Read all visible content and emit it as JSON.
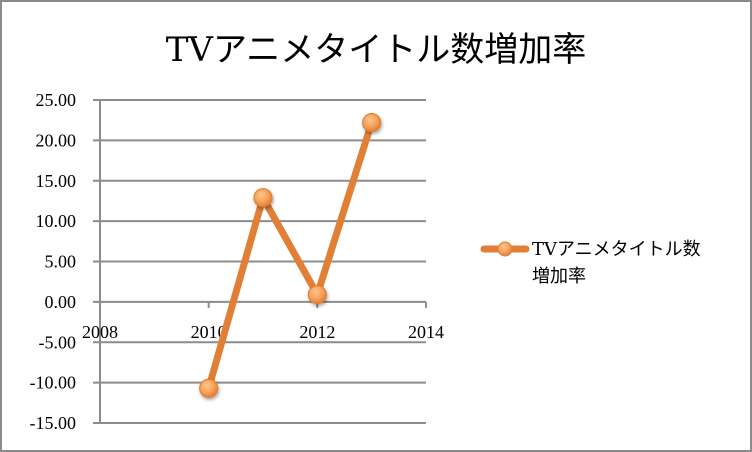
{
  "chart_data": {
    "type": "line",
    "title": "TVアニメタイトル数増加率",
    "xlabel": "",
    "ylabel": "",
    "x": [
      2010,
      2011,
      2012,
      2013
    ],
    "series": [
      {
        "name": "TVアニメタイトル数増加率",
        "values": [
          -10.7,
          12.9,
          0.9,
          22.2
        ],
        "color": "#e07f35"
      }
    ],
    "xlim": [
      2008,
      2014
    ],
    "ylim": [
      -15,
      25
    ],
    "x_ticks": [
      "2008",
      "2010",
      "2012",
      "2014"
    ],
    "y_ticks": [
      "25.00",
      "20.00",
      "15.00",
      "10.00",
      "5.00",
      "0.00",
      "-5.00",
      "-10.00",
      "-15.00"
    ],
    "grid": "horizontal",
    "legend_position": "right"
  },
  "legend": {
    "line1": "TVアニメタイトル数",
    "line2": "増加率"
  }
}
